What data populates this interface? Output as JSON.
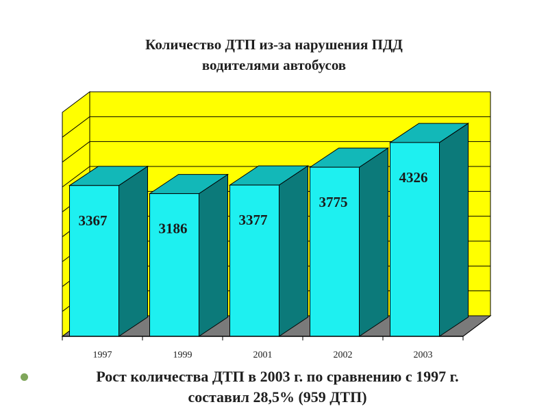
{
  "title": {
    "line1": "Количество ДТП из-за нарушения ПДД",
    "line2": "водителями автобусов"
  },
  "chart_data": {
    "type": "bar",
    "style": "3d",
    "categories": [
      "1997",
      "1999",
      "2001",
      "2002",
      "2003"
    ],
    "values": [
      3367,
      3186,
      3377,
      3775,
      4326
    ],
    "ylim": [
      0,
      5000
    ],
    "grid": true,
    "legend": "none",
    "colors": {
      "bar_front": "#1ef0f0",
      "bar_top": "#12b8b8",
      "bar_side": "#0c7a7a",
      "back_wall": "#ffff00",
      "side_wall": "#ffff00",
      "floor": "#7a7a7a",
      "grid": "#000000"
    }
  },
  "bullet": {
    "line1": "Рост количества ДТП в 2003 г. по сравнению с 1997 г.",
    "line2": "составил 28,5% (959 ДТП)",
    "dot_color": "#7fa65a"
  }
}
